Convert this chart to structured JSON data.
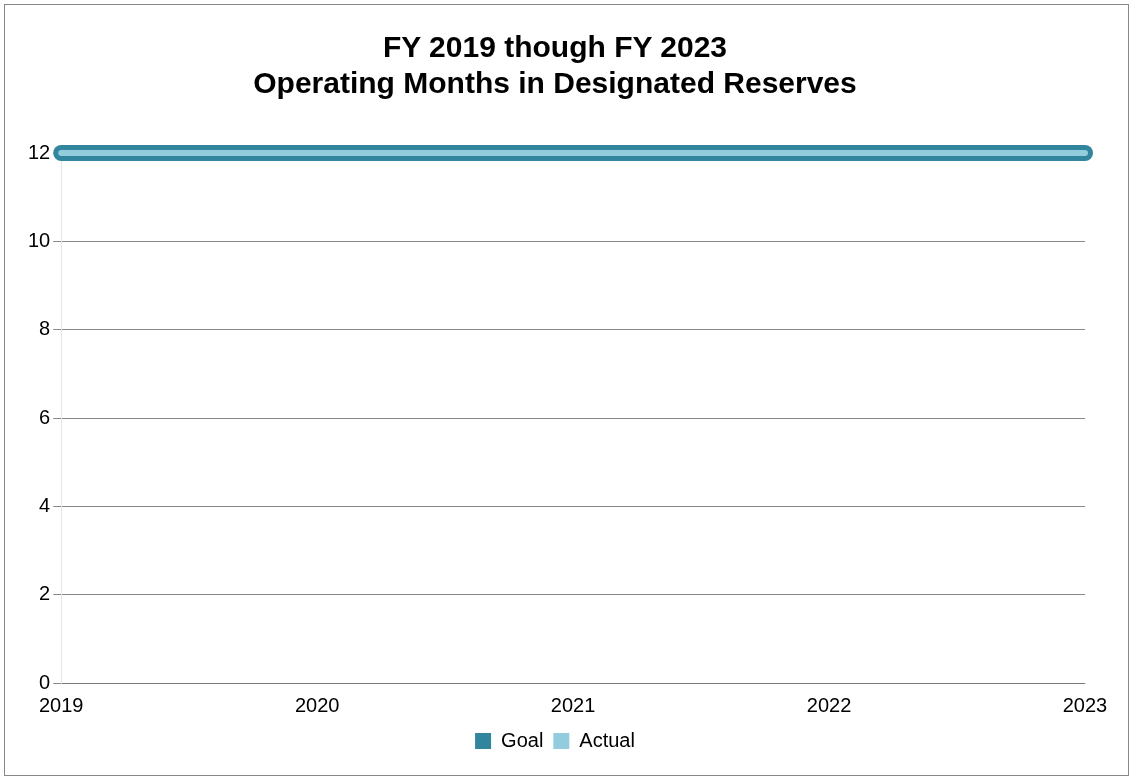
{
  "chart_data": {
    "type": "line",
    "title": [
      "FY 2019 though FY 2023",
      "Operating Months in Designated Reserves"
    ],
    "categories": [
      "2019",
      "2020",
      "2021",
      "2022",
      "2023"
    ],
    "series": [
      {
        "name": "Goal",
        "color": "#31859c",
        "values": [
          12,
          12,
          12,
          12,
          12
        ]
      },
      {
        "name": "Actual",
        "color": "#93cddd",
        "values": [
          12,
          12,
          12,
          12,
          12
        ]
      }
    ],
    "ylim": [
      0,
      12
    ],
    "yticks": [
      0,
      2,
      4,
      6,
      8,
      10,
      12
    ],
    "grid": "y",
    "legend": "bottom",
    "marker": "none"
  }
}
